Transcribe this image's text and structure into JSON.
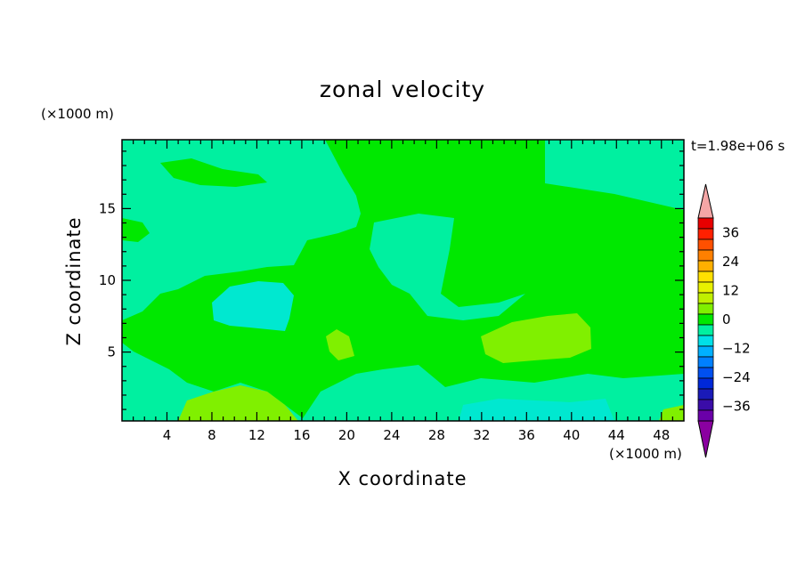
{
  "chart_data": {
    "type": "heatmap",
    "title": "zonal velocity",
    "xlabel": "X coordinate",
    "ylabel": "Z coordinate",
    "x_unit": "(×1000 m)",
    "y_unit": "(×1000 m)",
    "timestamp": "t=1.98e+06 s",
    "xlim": [
      0,
      50
    ],
    "ylim": [
      0.2,
      19.8
    ],
    "x_ticks": [
      "4",
      "8",
      "12",
      "16",
      "20",
      "24",
      "28",
      "32",
      "36",
      "40",
      "44",
      "48"
    ],
    "y_ticks": [
      "5",
      "10",
      "15"
    ],
    "colorbar": {
      "tick_labels": [
        "36",
        "24",
        "12",
        "0",
        "−12",
        "−24",
        "−36"
      ],
      "levels_min": -42,
      "levels_max": 42,
      "step": 6,
      "colors": [
        "#6a00a8",
        "#3a0ca8",
        "#1a1ab8",
        "#0028d8",
        "#0050f0",
        "#0080ff",
        "#00b0ff",
        "#00e0e8",
        "#00f0a0",
        "#00e800",
        "#80f000",
        "#c0f000",
        "#e8f000",
        "#ffe000",
        "#ffb000",
        "#ff8000",
        "#ff5000",
        "#ff2000",
        "#e80000"
      ],
      "over_color": "#f4a6a6",
      "under_color": "#8a00a0"
    }
  }
}
